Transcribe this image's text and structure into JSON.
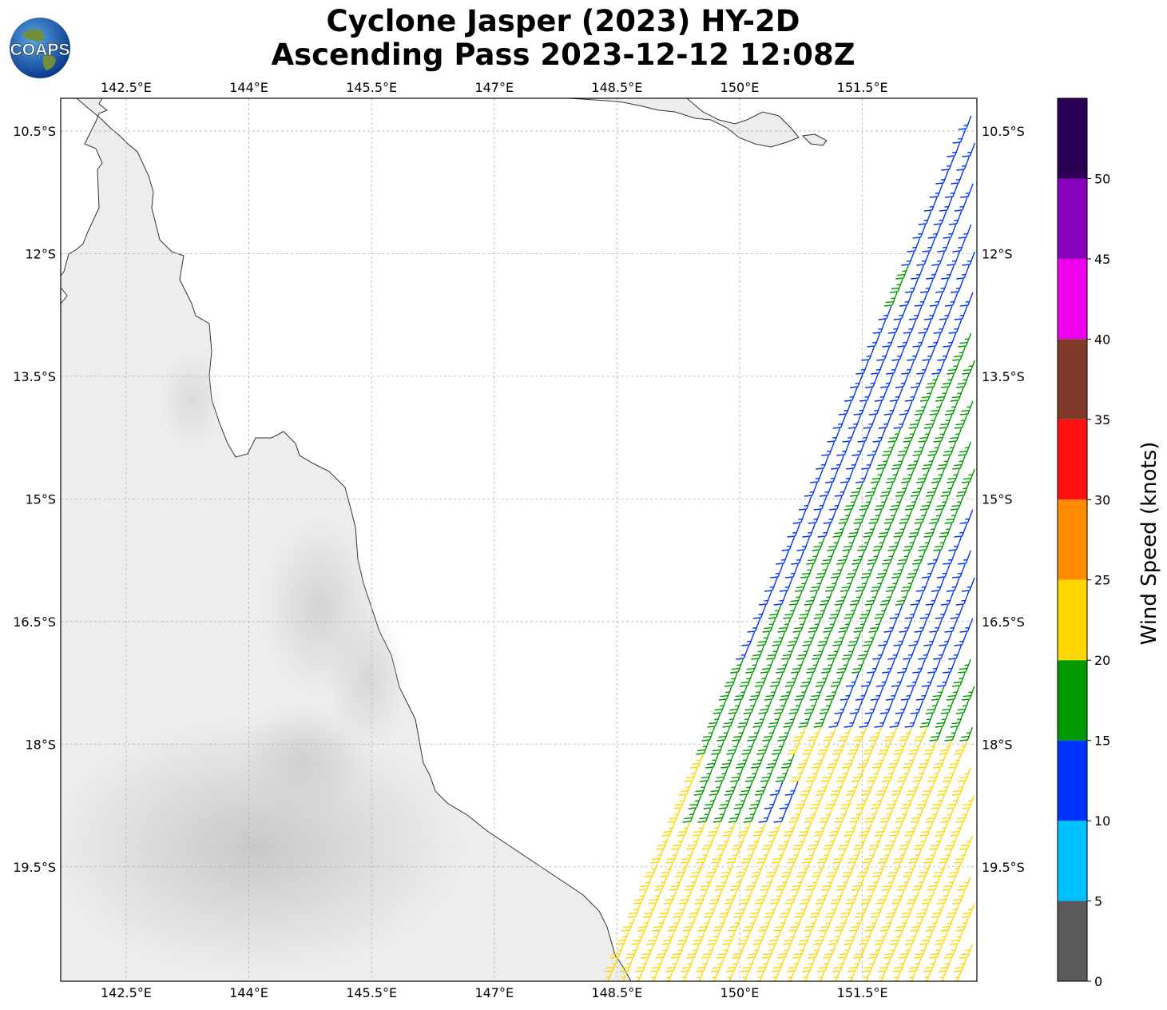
{
  "title": {
    "line1": "Cyclone Jasper (2023) HY-2D",
    "line2": "Ascending Pass 2023-12-12 12:08Z"
  },
  "logo": {
    "text": "COAPS"
  },
  "map": {
    "lon_ticks": [
      {
        "value": 142.5,
        "label": "142.5°E"
      },
      {
        "value": 144.0,
        "label": "144°E"
      },
      {
        "value": 145.5,
        "label": "145.5°E"
      },
      {
        "value": 147.0,
        "label": "147°E"
      },
      {
        "value": 148.5,
        "label": "148.5°E"
      },
      {
        "value": 150.0,
        "label": "150°E"
      },
      {
        "value": 151.5,
        "label": "151.5°E"
      }
    ],
    "lat_ticks": [
      {
        "value": -10.5,
        "label": "10.5°S"
      },
      {
        "value": -12.0,
        "label": "12°S"
      },
      {
        "value": -13.5,
        "label": "13.5°S"
      },
      {
        "value": -15.0,
        "label": "15°S"
      },
      {
        "value": -16.5,
        "label": "16.5°S"
      },
      {
        "value": -18.0,
        "label": "18°S"
      },
      {
        "value": -19.5,
        "label": "19.5°S"
      }
    ],
    "lon_range": [
      141.7,
      152.9
    ],
    "lat_range": [
      -10.1,
      -20.9
    ],
    "colors": {
      "land": "#ededed",
      "coast": "#333333",
      "grid": "#b0b0b0"
    }
  },
  "colorbar": {
    "label": "Wind Speed (knots)",
    "bins": [
      {
        "min": 0,
        "max": 5,
        "color": "#595959"
      },
      {
        "min": 5,
        "max": 10,
        "color": "#00bfff"
      },
      {
        "min": 10,
        "max": 15,
        "color": "#0033ff"
      },
      {
        "min": 15,
        "max": 20,
        "color": "#009900"
      },
      {
        "min": 20,
        "max": 25,
        "color": "#ffd700"
      },
      {
        "min": 25,
        "max": 30,
        "color": "#ff8c00"
      },
      {
        "min": 30,
        "max": 35,
        "color": "#ff1111"
      },
      {
        "min": 35,
        "max": 40,
        "color": "#7f3a2a"
      },
      {
        "min": 40,
        "max": 45,
        "color": "#ee00ee"
      },
      {
        "min": 45,
        "max": 50,
        "color": "#8800bb"
      },
      {
        "min": 50,
        "max": 55,
        "color": "#2c0055"
      }
    ],
    "ticks": [
      "0",
      "5",
      "10",
      "15",
      "20",
      "25",
      "30",
      "35",
      "40",
      "45",
      "50"
    ]
  },
  "wind_barbs": {
    "swath_east_lon": 152.9,
    "direction": "from south-southwest, barbs tilted",
    "speed_zones": [
      {
        "speed_kt": 12,
        "color": "#0033ff"
      },
      {
        "speed_kt": 17,
        "color": "#009900"
      },
      {
        "speed_kt": 22,
        "color": "#ffd700"
      }
    ]
  }
}
